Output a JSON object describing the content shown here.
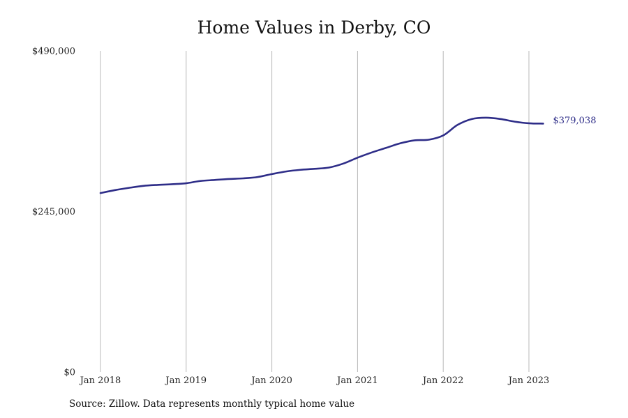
{
  "chart_data": {
    "type": "line",
    "title": "Home Values in Derby, CO",
    "xlabel": "",
    "ylabel": "",
    "ylim": [
      0,
      490000
    ],
    "y_ticks": [
      {
        "value": 0,
        "label": "$0"
      },
      {
        "value": 245000,
        "label": "$245,000"
      },
      {
        "value": 490000,
        "label": "$490,000"
      }
    ],
    "x_ticks": [
      {
        "date": "2018-01",
        "label": "Jan 2018"
      },
      {
        "date": "2019-01",
        "label": "Jan 2019"
      },
      {
        "date": "2020-01",
        "label": "Jan 2020"
      },
      {
        "date": "2021-01",
        "label": "Jan 2021"
      },
      {
        "date": "2022-01",
        "label": "Jan 2022"
      },
      {
        "date": "2023-01",
        "label": "Jan 2023"
      }
    ],
    "grid": "vertical",
    "series": [
      {
        "color": "#2e2d88",
        "end_label": "$379,038",
        "points": [
          {
            "x": "2018-01",
            "y": 273000
          },
          {
            "x": "2018-03",
            "y": 277500
          },
          {
            "x": "2018-05",
            "y": 281000
          },
          {
            "x": "2018-07",
            "y": 284000
          },
          {
            "x": "2018-09",
            "y": 285500
          },
          {
            "x": "2018-11",
            "y": 286500
          },
          {
            "x": "2019-01",
            "y": 288000
          },
          {
            "x": "2019-03",
            "y": 291500
          },
          {
            "x": "2019-05",
            "y": 293000
          },
          {
            "x": "2019-07",
            "y": 294500
          },
          {
            "x": "2019-09",
            "y": 295500
          },
          {
            "x": "2019-11",
            "y": 297500
          },
          {
            "x": "2020-01",
            "y": 302000
          },
          {
            "x": "2020-03",
            "y": 306000
          },
          {
            "x": "2020-05",
            "y": 308500
          },
          {
            "x": "2020-07",
            "y": 310000
          },
          {
            "x": "2020-09",
            "y": 312000
          },
          {
            "x": "2020-11",
            "y": 318000
          },
          {
            "x": "2021-01",
            "y": 327000
          },
          {
            "x": "2021-03",
            "y": 335000
          },
          {
            "x": "2021-05",
            "y": 342000
          },
          {
            "x": "2021-07",
            "y": 349000
          },
          {
            "x": "2021-09",
            "y": 353500
          },
          {
            "x": "2021-11",
            "y": 354500
          },
          {
            "x": "2022-01",
            "y": 361000
          },
          {
            "x": "2022-03",
            "y": 377000
          },
          {
            "x": "2022-05",
            "y": 386000
          },
          {
            "x": "2022-07",
            "y": 388000
          },
          {
            "x": "2022-09",
            "y": 386000
          },
          {
            "x": "2022-11",
            "y": 382000
          },
          {
            "x": "2023-01",
            "y": 379500
          },
          {
            "x": "2023-03",
            "y": 379038
          }
        ]
      }
    ]
  },
  "footer": {
    "source": "Source: Zillow. Data represents monthly typical home value"
  }
}
